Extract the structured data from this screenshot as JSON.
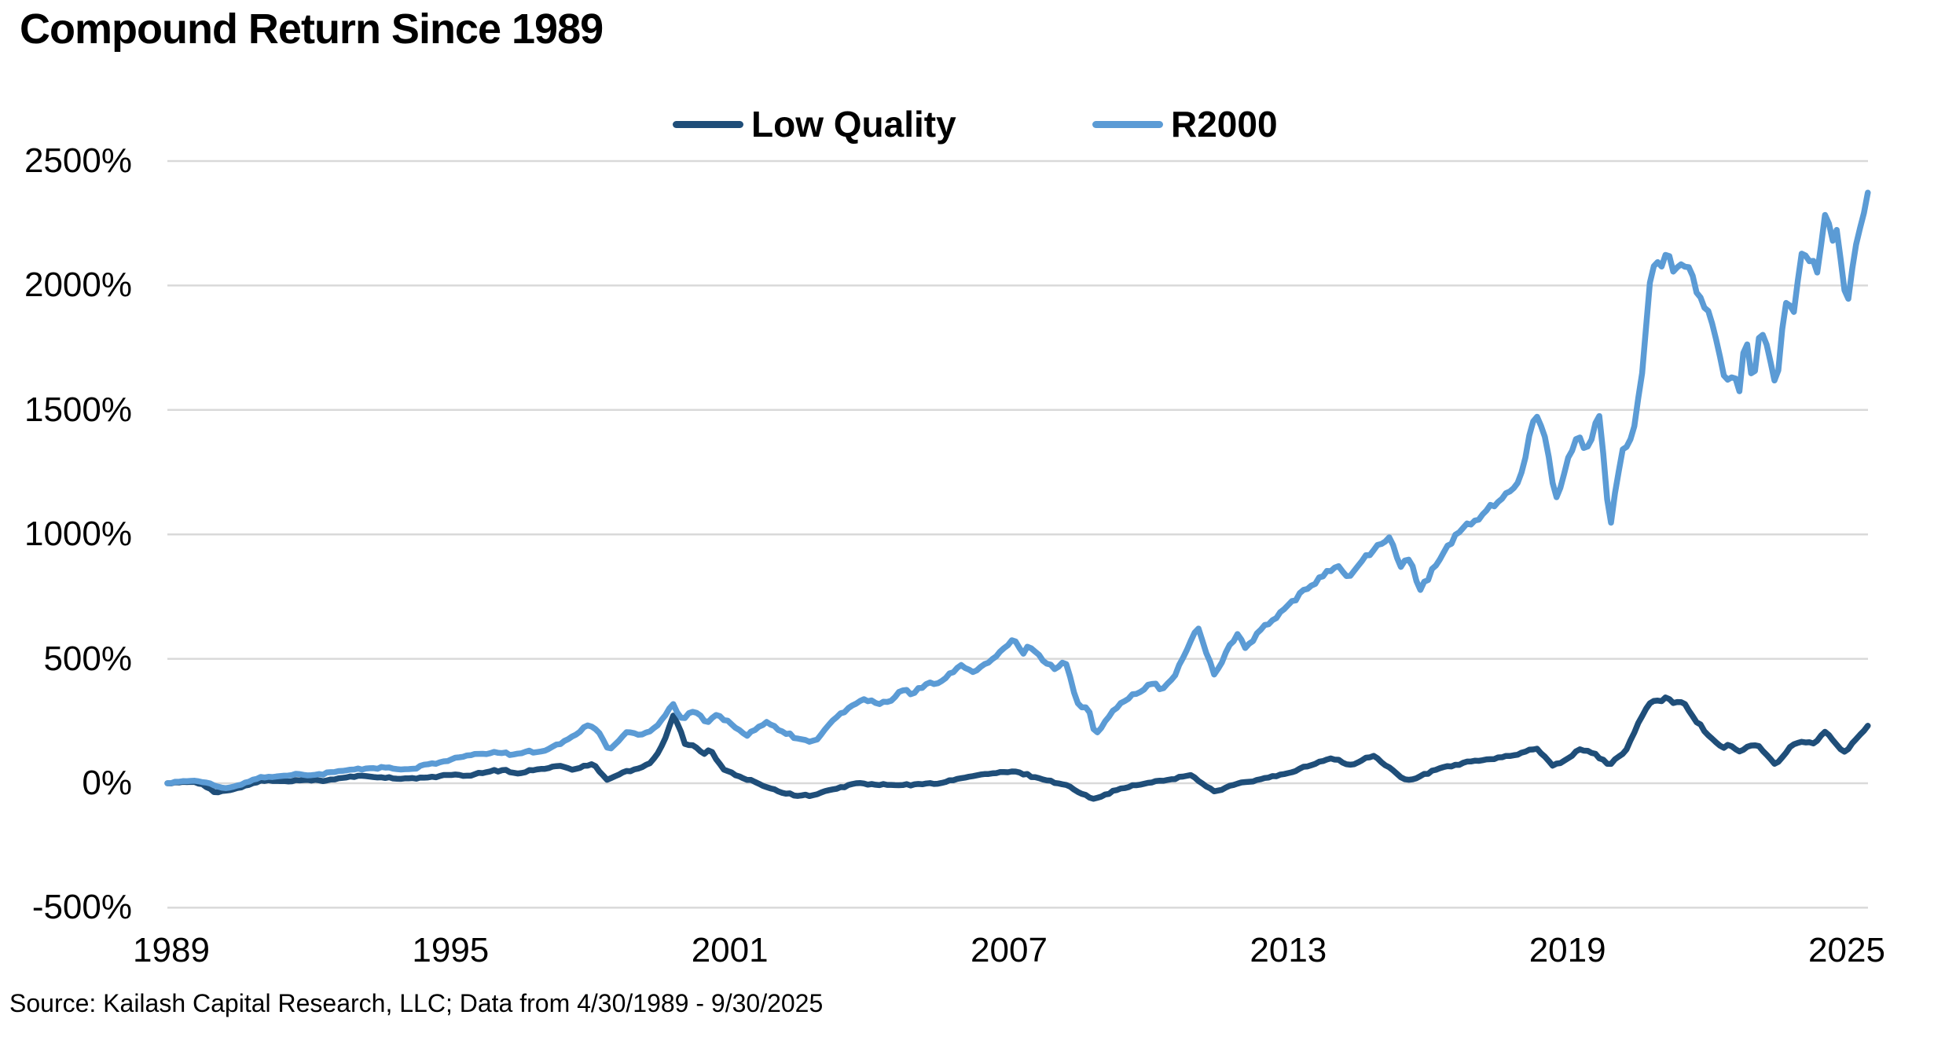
{
  "title": "Compound Return Since 1989",
  "source_note": "Source: Kailash Capital Research, LLC; Data from 4/30/1989 - 9/30/2025",
  "legend": [
    {
      "label": "Low Quality",
      "color": "#1F4E79"
    },
    {
      "label": "R2000",
      "color": "#5B9BD5"
    }
  ],
  "colors": {
    "grid": "#D9D9D9",
    "background": "#FFFFFF",
    "text": "#000000"
  },
  "chart_data": {
    "type": "line",
    "title": "Compound Return Since 1989",
    "xlabel": "",
    "ylabel": "",
    "x_unit": "year (Apr 1989 - Sep 2025, monthly)",
    "y_unit": "percent compound return",
    "ylim": [
      -500,
      2500
    ],
    "xlim": [
      1989.33,
      2025.75
    ],
    "grid": "horizontal",
    "legend_position": "top-center",
    "y_ticks": [
      {
        "label": "2500%",
        "value": 2500
      },
      {
        "label": "2000%",
        "value": 2000
      },
      {
        "label": "1500%",
        "value": 1500
      },
      {
        "label": "1000%",
        "value": 1000
      },
      {
        "label": "500%",
        "value": 500
      },
      {
        "label": "0%",
        "value": 0
      },
      {
        "label": "-500%",
        "value": -500
      }
    ],
    "x_ticks": [
      "1989",
      "1995",
      "2001",
      "2007",
      "2013",
      "2019",
      "2025"
    ],
    "series": [
      {
        "name": "Low Quality",
        "color": "#1F4E79",
        "points": [
          [
            1989.33,
            0
          ],
          [
            1989.6,
            3
          ],
          [
            1989.9,
            6
          ],
          [
            1990.1,
            -4
          ],
          [
            1990.35,
            -38
          ],
          [
            1990.6,
            -30
          ],
          [
            1990.9,
            -18
          ],
          [
            1991.2,
            4
          ],
          [
            1991.5,
            12
          ],
          [
            1991.9,
            7
          ],
          [
            1992.3,
            15
          ],
          [
            1992.7,
            9
          ],
          [
            1993.1,
            22
          ],
          [
            1993.5,
            30
          ],
          [
            1993.9,
            24
          ],
          [
            1994.3,
            17
          ],
          [
            1994.85,
            22
          ],
          [
            1995.3,
            34
          ],
          [
            1995.8,
            29
          ],
          [
            1996.2,
            47
          ],
          [
            1996.55,
            54
          ],
          [
            1996.8,
            38
          ],
          [
            1997.2,
            55
          ],
          [
            1997.75,
            70
          ],
          [
            1998.0,
            54
          ],
          [
            1998.45,
            78
          ],
          [
            1998.75,
            13
          ],
          [
            1999.1,
            45
          ],
          [
            1999.45,
            62
          ],
          [
            1999.7,
            85
          ],
          [
            1999.95,
            160
          ],
          [
            2000.18,
            280
          ],
          [
            2000.45,
            140
          ],
          [
            2000.55,
            158
          ],
          [
            2000.8,
            117
          ],
          [
            2000.95,
            138
          ],
          [
            2001.25,
            54
          ],
          [
            2001.75,
            13
          ],
          [
            2001.95,
            4
          ],
          [
            2002.2,
            -18
          ],
          [
            2002.8,
            -51
          ],
          [
            2003.2,
            -47
          ],
          [
            2003.6,
            -24
          ],
          [
            2004.1,
            1
          ],
          [
            2004.5,
            -6
          ],
          [
            2005.0,
            -8
          ],
          [
            2005.5,
            -4
          ],
          [
            2005.9,
            1
          ],
          [
            2006.45,
            25
          ],
          [
            2007.0,
            40
          ],
          [
            2007.5,
            47
          ],
          [
            2008.05,
            17
          ],
          [
            2008.6,
            -8
          ],
          [
            2008.9,
            -42
          ],
          [
            2009.15,
            -63
          ],
          [
            2009.75,
            -21
          ],
          [
            2010.35,
            2
          ],
          [
            2010.8,
            15
          ],
          [
            2011.25,
            33
          ],
          [
            2011.75,
            -33
          ],
          [
            2012.2,
            -4
          ],
          [
            2012.7,
            14
          ],
          [
            2013.4,
            43
          ],
          [
            2014.05,
            90
          ],
          [
            2014.25,
            100
          ],
          [
            2014.7,
            72
          ],
          [
            2015.15,
            112
          ],
          [
            2015.7,
            33
          ],
          [
            2015.85,
            12
          ],
          [
            2016.05,
            18
          ],
          [
            2016.6,
            62
          ],
          [
            2017.3,
            90
          ],
          [
            2017.7,
            96
          ],
          [
            2018.1,
            110
          ],
          [
            2018.65,
            142
          ],
          [
            2019.0,
            70
          ],
          [
            2019.35,
            102
          ],
          [
            2019.6,
            138
          ],
          [
            2019.9,
            120
          ],
          [
            2020.2,
            72
          ],
          [
            2020.55,
            125
          ],
          [
            2020.85,
            250
          ],
          [
            2021.05,
            315
          ],
          [
            2021.25,
            332
          ],
          [
            2021.42,
            345
          ],
          [
            2021.6,
            322
          ],
          [
            2021.8,
            330
          ],
          [
            2022.0,
            268
          ],
          [
            2022.3,
            198
          ],
          [
            2022.65,
            140
          ],
          [
            2022.8,
            157
          ],
          [
            2022.97,
            123
          ],
          [
            2023.2,
            150
          ],
          [
            2023.37,
            157
          ],
          [
            2023.55,
            118
          ],
          [
            2023.78,
            73
          ],
          [
            2024.1,
            150
          ],
          [
            2024.35,
            168
          ],
          [
            2024.6,
            158
          ],
          [
            2024.85,
            210
          ],
          [
            2025.0,
            172
          ],
          [
            2025.28,
            121
          ],
          [
            2025.5,
            178
          ],
          [
            2025.75,
            232
          ]
        ]
      },
      {
        "name": "R2000",
        "color": "#5B9BD5",
        "points": [
          [
            1989.33,
            0
          ],
          [
            1989.6,
            6
          ],
          [
            1989.95,
            11
          ],
          [
            1990.15,
            4
          ],
          [
            1990.55,
            -22
          ],
          [
            1990.9,
            -7
          ],
          [
            1991.2,
            18
          ],
          [
            1991.5,
            26
          ],
          [
            1991.85,
            30
          ],
          [
            1992.1,
            38
          ],
          [
            1992.5,
            34
          ],
          [
            1992.9,
            45
          ],
          [
            1993.3,
            55
          ],
          [
            1993.7,
            61
          ],
          [
            1994.0,
            63
          ],
          [
            1994.35,
            54
          ],
          [
            1994.65,
            58
          ],
          [
            1994.85,
            75
          ],
          [
            1995.25,
            88
          ],
          [
            1995.65,
            106
          ],
          [
            1996.0,
            118
          ],
          [
            1996.45,
            124
          ],
          [
            1996.7,
            113
          ],
          [
            1997.05,
            130
          ],
          [
            1997.3,
            126
          ],
          [
            1997.6,
            148
          ],
          [
            1997.95,
            180
          ],
          [
            1998.15,
            205
          ],
          [
            1998.35,
            236
          ],
          [
            1998.6,
            200
          ],
          [
            1998.78,
            130
          ],
          [
            1999.05,
            182
          ],
          [
            1999.2,
            210
          ],
          [
            1999.45,
            195
          ],
          [
            1999.7,
            212
          ],
          [
            1999.95,
            262
          ],
          [
            2000.15,
            322
          ],
          [
            2000.35,
            255
          ],
          [
            2000.6,
            290
          ],
          [
            2000.9,
            244
          ],
          [
            2001.1,
            280
          ],
          [
            2001.45,
            230
          ],
          [
            2001.75,
            190
          ],
          [
            2002.0,
            228
          ],
          [
            2002.15,
            248
          ],
          [
            2002.5,
            208
          ],
          [
            2002.85,
            178
          ],
          [
            2003.05,
            168
          ],
          [
            2003.25,
            176
          ],
          [
            2003.7,
            275
          ],
          [
            2004.25,
            338
          ],
          [
            2004.6,
            318
          ],
          [
            2004.85,
            332
          ],
          [
            2005.05,
            375
          ],
          [
            2005.3,
            358
          ],
          [
            2005.55,
            395
          ],
          [
            2005.9,
            410
          ],
          [
            2006.15,
            444
          ],
          [
            2006.35,
            478
          ],
          [
            2006.6,
            444
          ],
          [
            2006.95,
            490
          ],
          [
            2007.2,
            532
          ],
          [
            2007.45,
            578
          ],
          [
            2007.65,
            520
          ],
          [
            2007.8,
            552
          ],
          [
            2008.1,
            490
          ],
          [
            2008.35,
            458
          ],
          [
            2008.55,
            498
          ],
          [
            2008.8,
            330
          ],
          [
            2008.95,
            292
          ],
          [
            2009.05,
            308
          ],
          [
            2009.2,
            195
          ],
          [
            2009.55,
            285
          ],
          [
            2009.85,
            335
          ],
          [
            2010.15,
            365
          ],
          [
            2010.45,
            405
          ],
          [
            2010.6,
            372
          ],
          [
            2010.9,
            430
          ],
          [
            2011.15,
            530
          ],
          [
            2011.4,
            630
          ],
          [
            2011.75,
            435
          ],
          [
            2012.05,
            545
          ],
          [
            2012.25,
            600
          ],
          [
            2012.4,
            540
          ],
          [
            2012.7,
            608
          ],
          [
            2013.05,
            660
          ],
          [
            2013.25,
            700
          ],
          [
            2013.8,
            790
          ],
          [
            2014.15,
            852
          ],
          [
            2014.4,
            872
          ],
          [
            2014.65,
            830
          ],
          [
            2014.95,
            900
          ],
          [
            2015.25,
            958
          ],
          [
            2015.5,
            988
          ],
          [
            2015.75,
            868
          ],
          [
            2015.95,
            905
          ],
          [
            2016.15,
            772
          ],
          [
            2016.55,
            890
          ],
          [
            2016.95,
            1010
          ],
          [
            2017.25,
            1040
          ],
          [
            2017.55,
            1090
          ],
          [
            2017.85,
            1130
          ],
          [
            2018.05,
            1162
          ],
          [
            2018.35,
            1255
          ],
          [
            2018.62,
            1500
          ],
          [
            2018.8,
            1420
          ],
          [
            2019.07,
            1142
          ],
          [
            2019.35,
            1320
          ],
          [
            2019.55,
            1385
          ],
          [
            2019.75,
            1352
          ],
          [
            2020.0,
            1478
          ],
          [
            2020.22,
            1020
          ],
          [
            2020.5,
            1345
          ],
          [
            2020.7,
            1390
          ],
          [
            2020.9,
            1620
          ],
          [
            2021.1,
            2045
          ],
          [
            2021.3,
            2085
          ],
          [
            2021.45,
            2130
          ],
          [
            2021.62,
            2055
          ],
          [
            2021.78,
            2100
          ],
          [
            2021.95,
            2075
          ],
          [
            2022.15,
            1950
          ],
          [
            2022.35,
            1895
          ],
          [
            2022.55,
            1748
          ],
          [
            2022.7,
            1592
          ],
          [
            2022.85,
            1645
          ],
          [
            2023.0,
            1572
          ],
          [
            2023.12,
            1815
          ],
          [
            2023.28,
            1605
          ],
          [
            2023.45,
            1830
          ],
          [
            2023.62,
            1718
          ],
          [
            2023.8,
            1592
          ],
          [
            2023.97,
            1948
          ],
          [
            2024.15,
            1872
          ],
          [
            2024.35,
            2158
          ],
          [
            2024.5,
            2095
          ],
          [
            2024.68,
            2048
          ],
          [
            2024.87,
            2330
          ],
          [
            2024.97,
            2142
          ],
          [
            2025.1,
            2248
          ],
          [
            2025.3,
            1888
          ],
          [
            2025.45,
            2098
          ],
          [
            2025.6,
            2252
          ],
          [
            2025.75,
            2378
          ]
        ]
      }
    ]
  }
}
